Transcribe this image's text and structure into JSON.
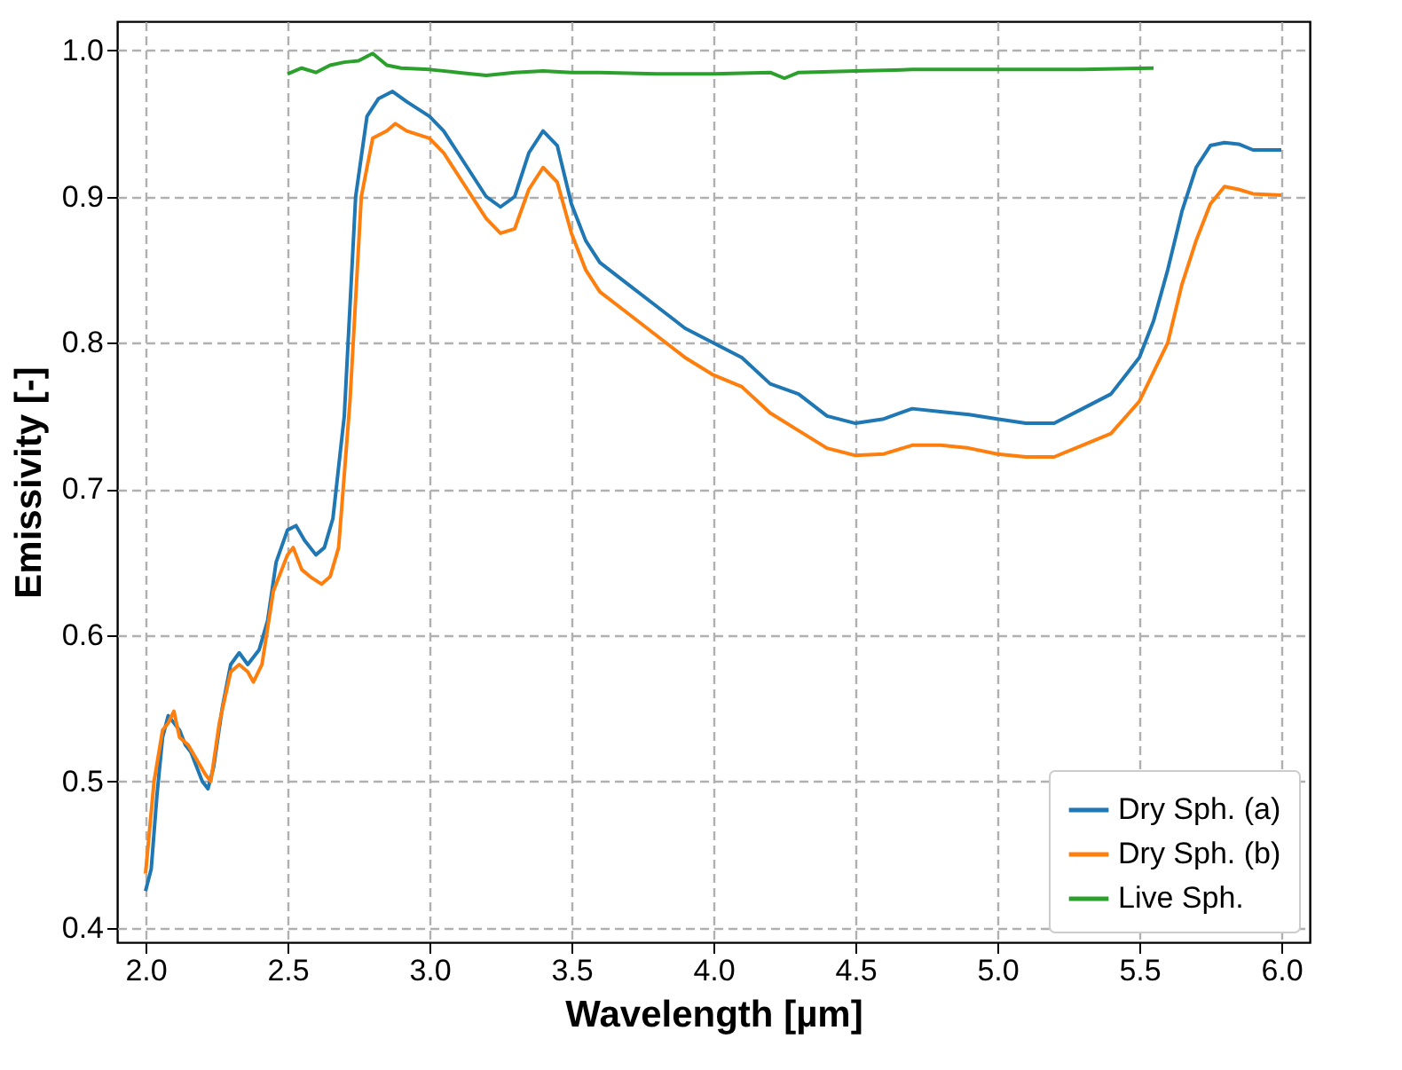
{
  "chart_data": {
    "type": "line",
    "xlabel": "Wavelength [µm]",
    "ylabel": "Emissivity [-]",
    "xlim": [
      1.9,
      6.1
    ],
    "ylim": [
      0.39,
      1.02
    ],
    "xticks": [
      {
        "value": 2.0,
        "label": "2.0"
      },
      {
        "value": 2.5,
        "label": "2.5"
      },
      {
        "value": 3.0,
        "label": "3.0"
      },
      {
        "value": 3.5,
        "label": "3.5"
      },
      {
        "value": 4.0,
        "label": "4.0"
      },
      {
        "value": 4.5,
        "label": "4.5"
      },
      {
        "value": 5.0,
        "label": "5.0"
      },
      {
        "value": 5.5,
        "label": "5.5"
      },
      {
        "value": 6.0,
        "label": "6.0"
      }
    ],
    "yticks": [
      0.4,
      0.5,
      0.6,
      0.7,
      0.8,
      0.9,
      {
        "value": 1.0,
        "label": "1.0"
      }
    ],
    "grid": true,
    "legend": "bottom right",
    "marker": "none",
    "line_style": "solid",
    "series": [
      {
        "name": "Dry Sph. (a)",
        "color": "#1f77b4",
        "x": [
          2.0,
          2.02,
          2.04,
          2.06,
          2.08,
          2.1,
          2.12,
          2.14,
          2.16,
          2.18,
          2.2,
          2.22,
          2.24,
          2.27,
          2.3,
          2.33,
          2.36,
          2.4,
          2.43,
          2.46,
          2.5,
          2.53,
          2.56,
          2.6,
          2.63,
          2.66,
          2.7,
          2.74,
          2.78,
          2.82,
          2.87,
          2.92,
          3.0,
          3.05,
          3.1,
          3.15,
          3.2,
          3.25,
          3.3,
          3.35,
          3.4,
          3.45,
          3.5,
          3.55,
          3.6,
          3.7,
          3.8,
          3.9,
          4.0,
          4.1,
          4.2,
          4.3,
          4.4,
          4.5,
          4.6,
          4.7,
          4.8,
          4.9,
          5.0,
          5.1,
          5.2,
          5.3,
          5.4,
          5.5,
          5.55,
          5.6,
          5.65,
          5.7,
          5.75,
          5.8,
          5.85,
          5.9,
          6.0
        ],
        "values": [
          0.425,
          0.44,
          0.49,
          0.53,
          0.545,
          0.54,
          0.535,
          0.525,
          0.52,
          0.51,
          0.5,
          0.495,
          0.51,
          0.55,
          0.58,
          0.588,
          0.58,
          0.59,
          0.61,
          0.65,
          0.672,
          0.675,
          0.665,
          0.655,
          0.66,
          0.68,
          0.75,
          0.9,
          0.955,
          0.967,
          0.972,
          0.965,
          0.955,
          0.945,
          0.93,
          0.915,
          0.9,
          0.893,
          0.9,
          0.93,
          0.945,
          0.935,
          0.895,
          0.87,
          0.855,
          0.84,
          0.825,
          0.81,
          0.8,
          0.79,
          0.772,
          0.765,
          0.75,
          0.745,
          0.748,
          0.755,
          0.753,
          0.751,
          0.748,
          0.745,
          0.745,
          0.755,
          0.765,
          0.79,
          0.815,
          0.85,
          0.89,
          0.92,
          0.935,
          0.937,
          0.936,
          0.932,
          0.932
        ]
      },
      {
        "name": "Dry Sph. (b)",
        "color": "#ff7f0e",
        "x": [
          2.0,
          2.03,
          2.06,
          2.08,
          2.1,
          2.12,
          2.15,
          2.18,
          2.21,
          2.23,
          2.26,
          2.3,
          2.33,
          2.36,
          2.38,
          2.41,
          2.45,
          2.5,
          2.52,
          2.55,
          2.58,
          2.62,
          2.65,
          2.68,
          2.72,
          2.76,
          2.8,
          2.85,
          2.88,
          2.92,
          3.0,
          3.05,
          3.1,
          3.15,
          3.2,
          3.25,
          3.3,
          3.35,
          3.4,
          3.45,
          3.5,
          3.55,
          3.6,
          3.7,
          3.8,
          3.9,
          4.0,
          4.1,
          4.2,
          4.3,
          4.4,
          4.5,
          4.6,
          4.7,
          4.8,
          4.9,
          5.0,
          5.1,
          5.2,
          5.3,
          5.4,
          5.5,
          5.6,
          5.65,
          5.7,
          5.75,
          5.8,
          5.85,
          5.9,
          6.0
        ],
        "values": [
          0.437,
          0.5,
          0.535,
          0.54,
          0.548,
          0.53,
          0.525,
          0.515,
          0.505,
          0.5,
          0.54,
          0.575,
          0.58,
          0.575,
          0.568,
          0.58,
          0.63,
          0.655,
          0.66,
          0.645,
          0.64,
          0.635,
          0.64,
          0.66,
          0.76,
          0.9,
          0.94,
          0.945,
          0.95,
          0.945,
          0.94,
          0.93,
          0.915,
          0.9,
          0.885,
          0.875,
          0.878,
          0.905,
          0.92,
          0.91,
          0.875,
          0.85,
          0.835,
          0.82,
          0.805,
          0.79,
          0.778,
          0.77,
          0.752,
          0.74,
          0.728,
          0.723,
          0.724,
          0.73,
          0.73,
          0.728,
          0.724,
          0.722,
          0.722,
          0.73,
          0.738,
          0.76,
          0.8,
          0.84,
          0.87,
          0.895,
          0.907,
          0.905,
          0.902,
          0.901
        ]
      },
      {
        "name": "Live Sph.",
        "color": "#2ca02c",
        "x": [
          2.5,
          2.55,
          2.6,
          2.65,
          2.7,
          2.75,
          2.8,
          2.85,
          2.9,
          3.0,
          3.1,
          3.2,
          3.3,
          3.4,
          3.5,
          3.6,
          3.8,
          4.0,
          4.2,
          4.25,
          4.3,
          4.5,
          4.7,
          5.0,
          5.3,
          5.55
        ],
        "values": [
          0.984,
          0.988,
          0.985,
          0.99,
          0.992,
          0.993,
          0.998,
          0.99,
          0.988,
          0.987,
          0.985,
          0.983,
          0.985,
          0.986,
          0.985,
          0.985,
          0.984,
          0.984,
          0.985,
          0.981,
          0.985,
          0.986,
          0.987,
          0.987,
          0.987,
          0.988
        ]
      }
    ]
  }
}
